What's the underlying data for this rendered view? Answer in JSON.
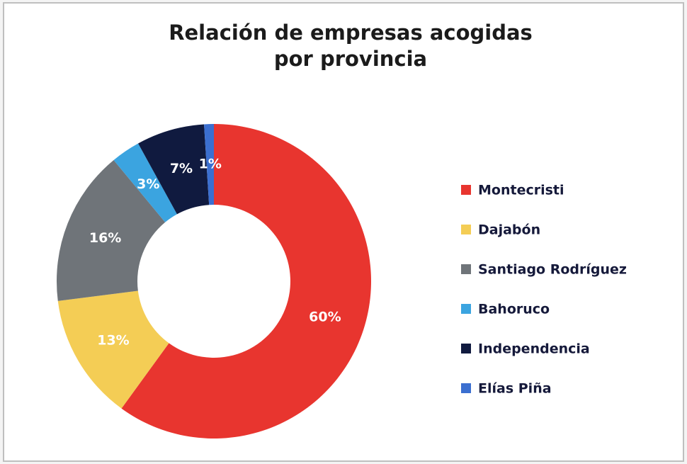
{
  "chart_data": {
    "type": "donut",
    "title": [
      "Relación de empresas acogidas",
      "por provincia"
    ],
    "categories": [
      "Montecristi",
      "Dajabón",
      "Santiago Rodríguez",
      "Bahoruco",
      "Independencia",
      "Elías Piña"
    ],
    "values": [
      60,
      13,
      16,
      3,
      7,
      1
    ],
    "value_labels": [
      "60%",
      "13%",
      "16%",
      "3%",
      "7%",
      "1%"
    ],
    "colors": [
      "#e8352f",
      "#f4cd55",
      "#6f7479",
      "#3ba4e0",
      "#101a3f",
      "#3b6fd0"
    ],
    "legend": "right"
  }
}
